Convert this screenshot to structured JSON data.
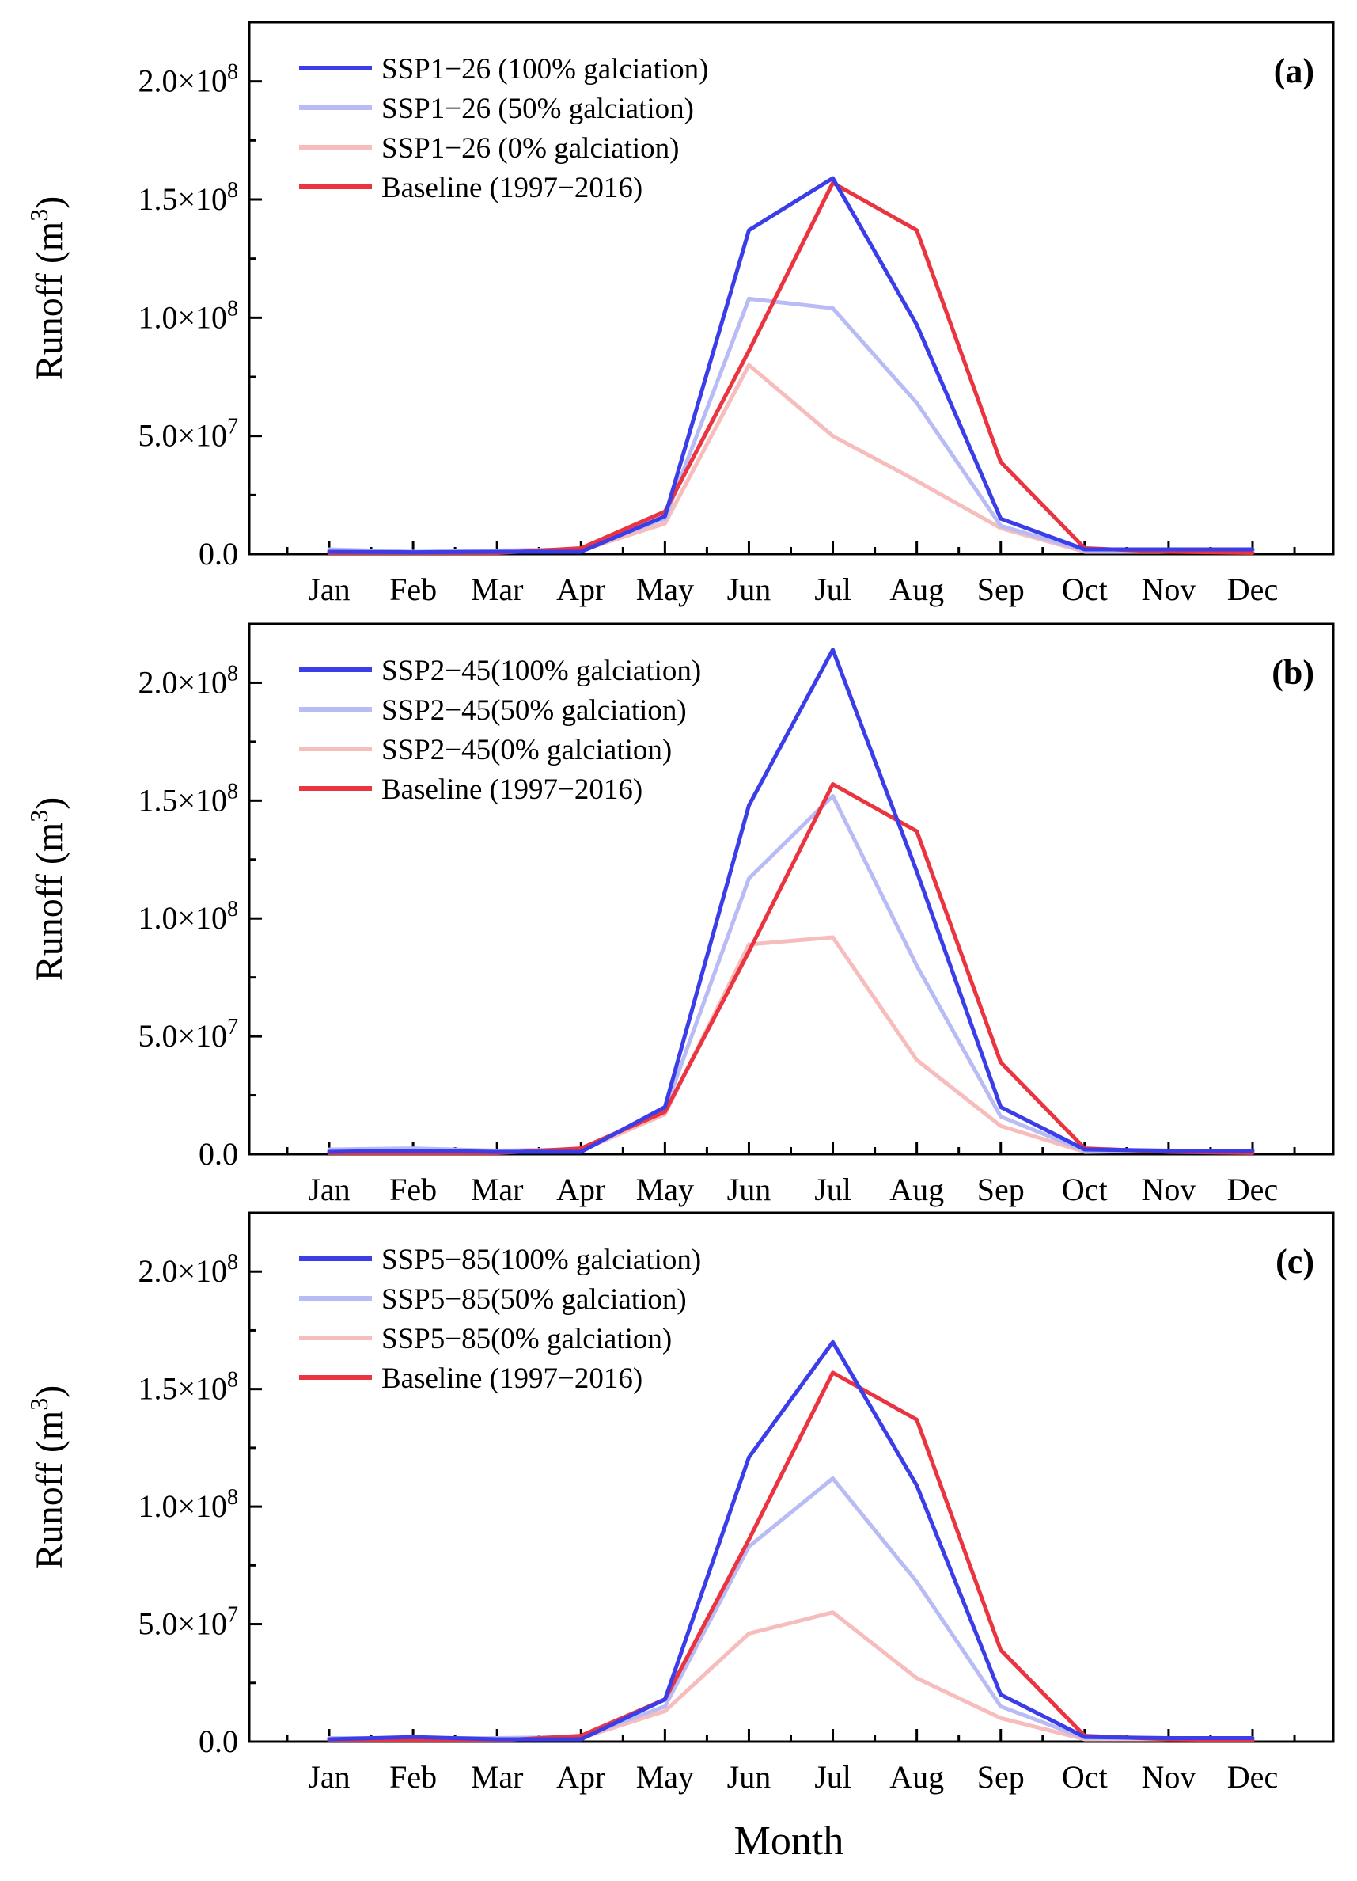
{
  "colors": {
    "ssp_100": "#3b3ee8",
    "ssp_50": "#b9bcf4",
    "ssp_0": "#f7bcbc",
    "baseline": "#ea3440"
  },
  "x_title": "Month",
  "chart_data": [
    {
      "type": "line",
      "panel_label": "(a)",
      "ylabel": "Runoff (m",
      "ylabel_sup": "3",
      "ylabel_close": ")",
      "categories": [
        "Jan",
        "Feb",
        "Mar",
        "Apr",
        "May",
        "Jun",
        "Jul",
        "Aug",
        "Sep",
        "Oct",
        "Nov",
        "Dec"
      ],
      "ylim": [
        0,
        225000000
      ],
      "yticks": [
        {
          "value": 0,
          "label": "0.0"
        },
        {
          "value": 50000000,
          "mant": "5.0×10",
          "exp": "7"
        },
        {
          "value": 100000000,
          "mant": "1.0×10",
          "exp": "8"
        },
        {
          "value": 150000000,
          "mant": "1.5×10",
          "exp": "8"
        },
        {
          "value": 200000000,
          "mant": "2.0×10",
          "exp": "8"
        }
      ],
      "series": [
        {
          "name": "SSP1−26 (100% galciation)",
          "color_key": "ssp_100",
          "values": [
            1000000,
            800000,
            1000000,
            1000000,
            16000000,
            137000000,
            159000000,
            97000000,
            15000000,
            2000000,
            2000000,
            2000000
          ]
        },
        {
          "name": "SSP1−26 (50% galciation)",
          "color_key": "ssp_50",
          "values": [
            2000000,
            1000000,
            1500000,
            2000000,
            15000000,
            108000000,
            104000000,
            64000000,
            12000000,
            1500000,
            1500000,
            1500000
          ]
        },
        {
          "name": "SSP1−26 (0% galciation)",
          "color_key": "ssp_0",
          "values": [
            1500000,
            1000000,
            1000000,
            1500000,
            13000000,
            80000000,
            50000000,
            31000000,
            11000000,
            1000000,
            1000000,
            1000000
          ]
        },
        {
          "name": "Baseline (1997−2016)",
          "color_key": "baseline",
          "values": [
            500000,
            500000,
            500000,
            2500000,
            18000000,
            86000000,
            157000000,
            137000000,
            39000000,
            2500000,
            1000000,
            500000
          ]
        }
      ]
    },
    {
      "type": "line",
      "panel_label": "(b)",
      "ylabel": "Runoff (m",
      "ylabel_sup": "3",
      "ylabel_close": ")",
      "categories": [
        "Jan",
        "Feb",
        "Mar",
        "Apr",
        "May",
        "Jun",
        "Jul",
        "Aug",
        "Sep",
        "Oct",
        "Nov",
        "Dec"
      ],
      "ylim": [
        0,
        225000000
      ],
      "yticks": [
        {
          "value": 0,
          "label": "0.0"
        },
        {
          "value": 50000000,
          "mant": "5.0×10",
          "exp": "7"
        },
        {
          "value": 100000000,
          "mant": "1.0×10",
          "exp": "8"
        },
        {
          "value": 150000000,
          "mant": "1.5×10",
          "exp": "8"
        },
        {
          "value": 200000000,
          "mant": "2.0×10",
          "exp": "8"
        }
      ],
      "series": [
        {
          "name": "SSP2−45(100% galciation)",
          "color_key": "ssp_100",
          "values": [
            1000000,
            1500000,
            1000000,
            1000000,
            20000000,
            148000000,
            214000000,
            120000000,
            20000000,
            2000000,
            1500000,
            1500000
          ]
        },
        {
          "name": "SSP2−45(50% galciation)",
          "color_key": "ssp_50",
          "values": [
            2000000,
            2500000,
            1500000,
            2000000,
            19000000,
            117000000,
            152000000,
            80000000,
            16000000,
            1500000,
            1500000,
            1500000
          ]
        },
        {
          "name": "SSP2−45(0% galciation)",
          "color_key": "ssp_0",
          "values": [
            1500000,
            1500000,
            1000000,
            1500000,
            17000000,
            89000000,
            92000000,
            40000000,
            12000000,
            1000000,
            1500000,
            1000000
          ]
        },
        {
          "name": "Baseline (1997−2016)",
          "color_key": "baseline",
          "values": [
            500000,
            500000,
            500000,
            2500000,
            18000000,
            86000000,
            157000000,
            137000000,
            39000000,
            2500000,
            1000000,
            500000
          ]
        }
      ]
    },
    {
      "type": "line",
      "panel_label": "(c)",
      "ylabel": "Runoff (m",
      "ylabel_sup": "3",
      "ylabel_close": ")",
      "categories": [
        "Jan",
        "Feb",
        "Mar",
        "Apr",
        "May",
        "Jun",
        "Jul",
        "Aug",
        "Sep",
        "Oct",
        "Nov",
        "Dec"
      ],
      "ylim": [
        0,
        225000000
      ],
      "yticks": [
        {
          "value": 0,
          "label": "0.0"
        },
        {
          "value": 50000000,
          "mant": "5.0×10",
          "exp": "7"
        },
        {
          "value": 100000000,
          "mant": "1.0×10",
          "exp": "8"
        },
        {
          "value": 150000000,
          "mant": "1.5×10",
          "exp": "8"
        },
        {
          "value": 200000000,
          "mant": "2.0×10",
          "exp": "8"
        }
      ],
      "series": [
        {
          "name": "SSP5−85(100% galciation)",
          "color_key": "ssp_100",
          "values": [
            1000000,
            2000000,
            1000000,
            1000000,
            18000000,
            121000000,
            170000000,
            109000000,
            20000000,
            2000000,
            1500000,
            1500000
          ]
        },
        {
          "name": "SSP5−85(50% galciation)",
          "color_key": "ssp_50",
          "values": [
            1500000,
            1500000,
            1500000,
            2000000,
            15000000,
            83000000,
            112000000,
            68000000,
            15000000,
            1500000,
            1500000,
            1500000
          ]
        },
        {
          "name": "SSP5−85(0% galciation)",
          "color_key": "ssp_0",
          "values": [
            1500000,
            1000000,
            1000000,
            1500000,
            13000000,
            46000000,
            55000000,
            27000000,
            10000000,
            1000000,
            1000000,
            1000000
          ]
        },
        {
          "name": "Baseline (1997−2016)",
          "color_key": "baseline",
          "values": [
            500000,
            500000,
            500000,
            2500000,
            18000000,
            86000000,
            157000000,
            137000000,
            39000000,
            2500000,
            1000000,
            500000
          ]
        }
      ]
    }
  ]
}
